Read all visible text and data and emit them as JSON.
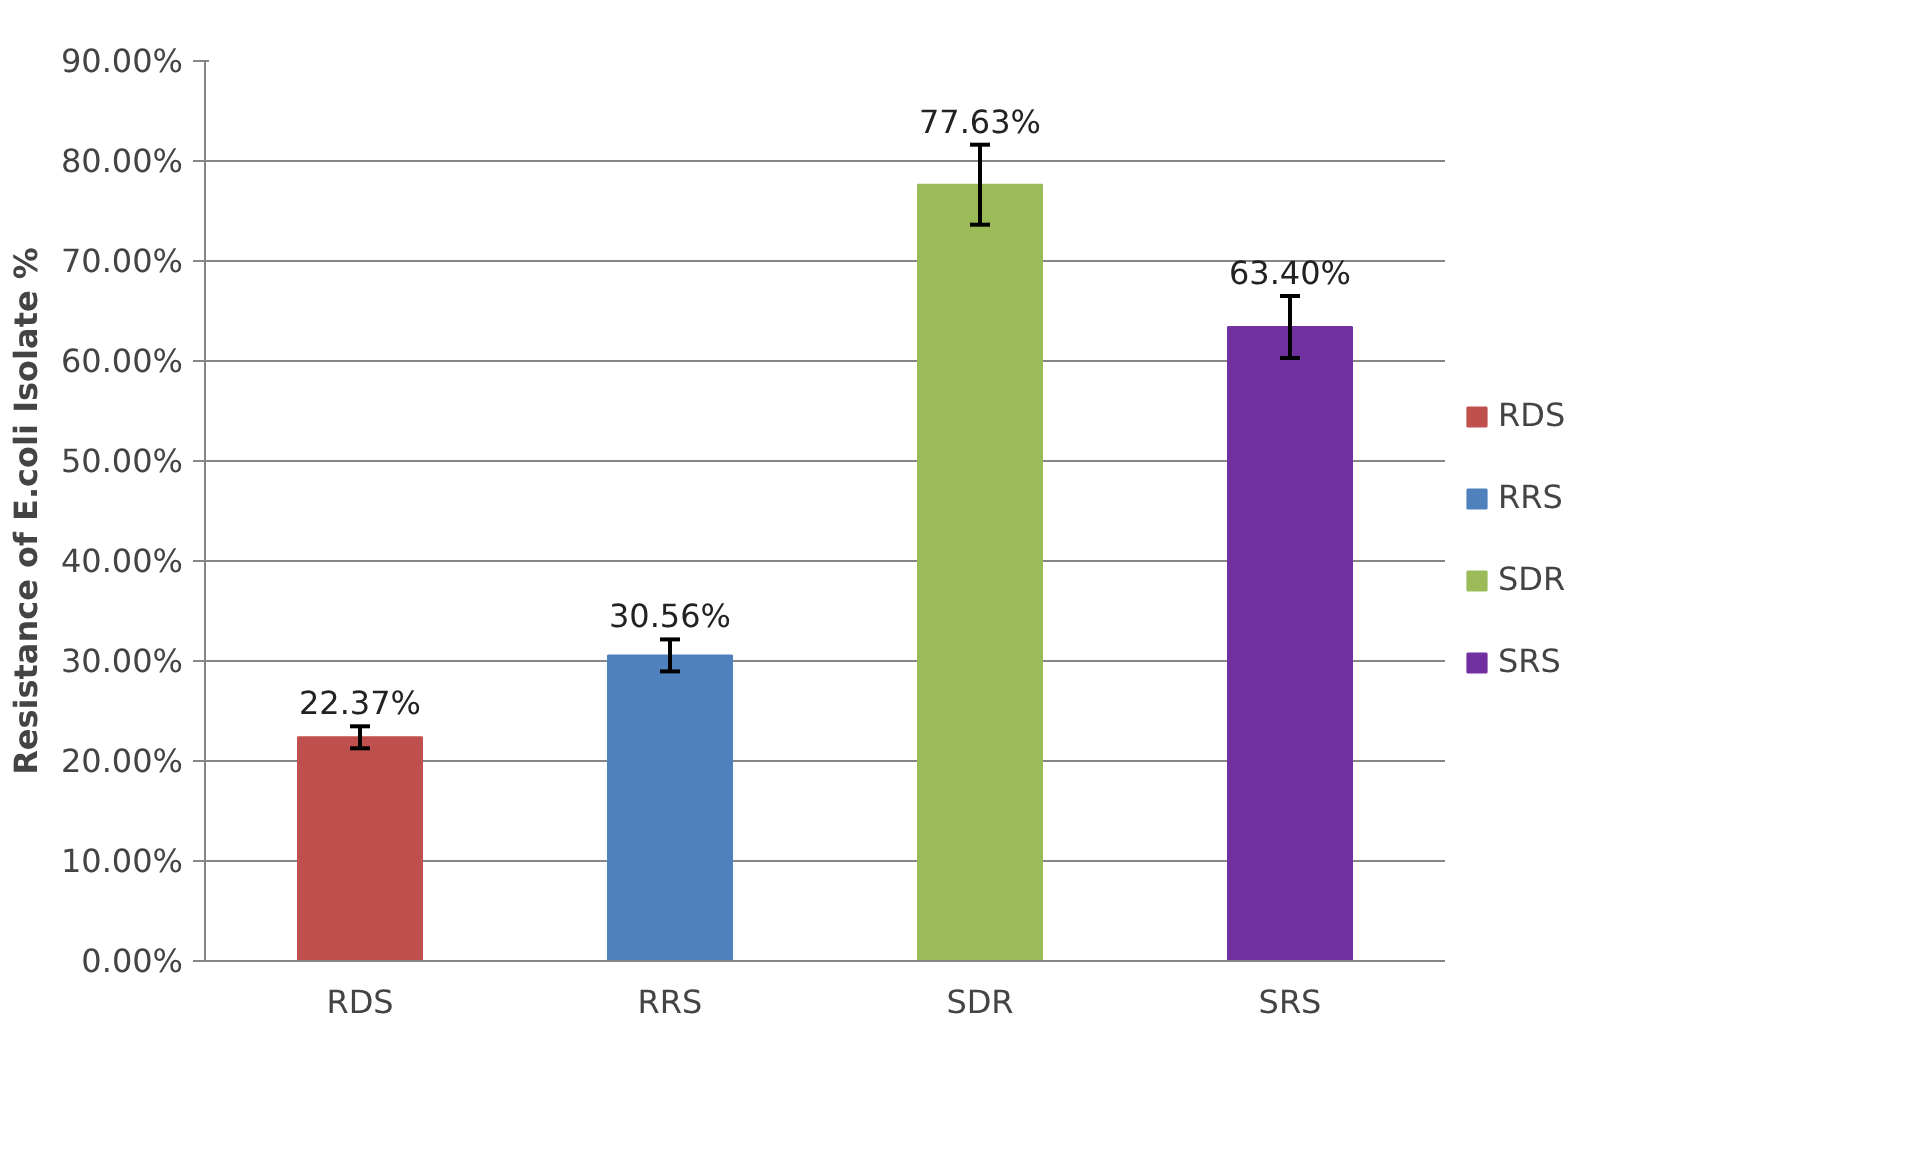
{
  "chart_data": {
    "type": "bar",
    "stacked": true,
    "ylabel": "Resistance of E.coli Isolate %",
    "categories": [
      "RDS",
      "RRS",
      "SDR",
      "SRS"
    ],
    "series": [
      {
        "name": "RDS",
        "color": "#c0504d",
        "values": [
          22.37,
          null,
          null,
          null
        ],
        "errors": [
          1.1,
          null,
          null,
          null
        ],
        "value_labels": [
          "22.37%",
          null,
          null,
          null
        ]
      },
      {
        "name": "RRS",
        "color": "#4f81bd",
        "values": [
          null,
          30.56,
          null,
          null
        ],
        "errors": [
          null,
          1.6,
          null,
          null
        ],
        "value_labels": [
          null,
          "30.56%",
          null,
          null
        ]
      },
      {
        "name": "SDR",
        "color": "#9bbb59",
        "values": [
          null,
          null,
          77.63,
          null
        ],
        "errors": [
          null,
          null,
          4,
          null
        ],
        "value_labels": [
          null,
          null,
          "77.63%",
          null
        ]
      },
      {
        "name": "SRS",
        "color": "#7030a0",
        "values": [
          null,
          null,
          null,
          63.4
        ],
        "errors": [
          null,
          null,
          null,
          3.1
        ],
        "value_labels": [
          null,
          null,
          null,
          "63.40%"
        ]
      }
    ],
    "ylim": [
      0,
      90
    ],
    "yticks": [
      {
        "value": 0,
        "label": "0.00%"
      },
      {
        "value": 10,
        "label": "10.00%"
      },
      {
        "value": 20,
        "label": "20.00%"
      },
      {
        "value": 30,
        "label": "30.00%"
      },
      {
        "value": 40,
        "label": "40.00%"
      },
      {
        "value": 50,
        "label": "50.00%"
      },
      {
        "value": 60,
        "label": "60.00%"
      },
      {
        "value": 70,
        "label": "70.00%"
      },
      {
        "value": 80,
        "label": "80.00%"
      },
      {
        "value": 90,
        "label": "90.00%"
      }
    ],
    "grid": "y",
    "legend": "right"
  }
}
